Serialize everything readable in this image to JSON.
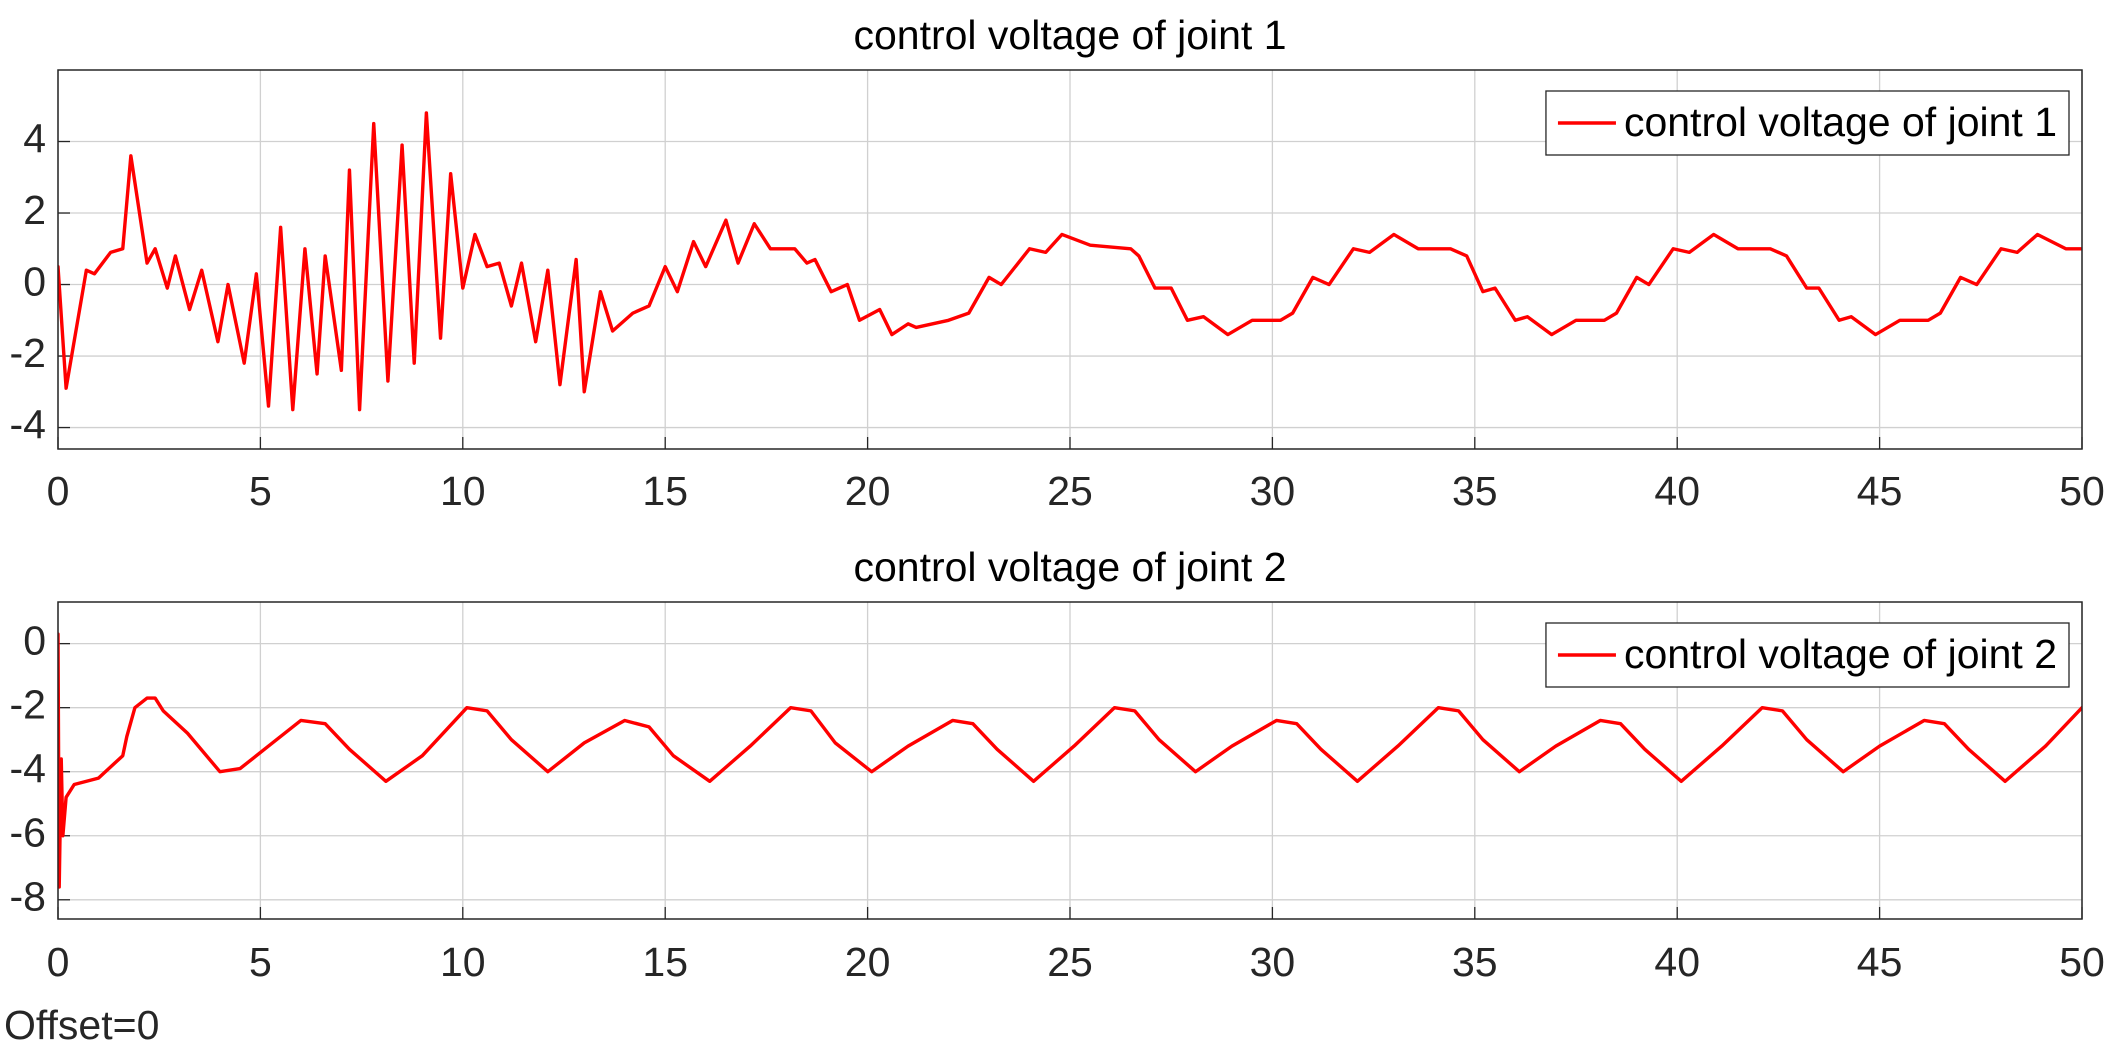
{
  "chart_data": [
    {
      "type": "line",
      "title": "control voltage of joint 1",
      "xlim": [
        0,
        50
      ],
      "xticks": [
        0,
        5,
        10,
        15,
        20,
        25,
        30,
        35,
        40,
        45,
        50
      ],
      "ylim": [
        -4.6,
        6
      ],
      "yticks": [
        -4,
        -2,
        0,
        2,
        4
      ],
      "grid": true,
      "legend": "upper right",
      "x": [
        0,
        0.2,
        0.7,
        0.9,
        1.3,
        1.6,
        1.8,
        2.2,
        2.4,
        2.7,
        2.9,
        3.25,
        3.55,
        3.95,
        4.2,
        4.6,
        4.9,
        5.2,
        5.5,
        5.8,
        6.1,
        6.4,
        6.6,
        7.0,
        7.2,
        7.45,
        7.8,
        8.15,
        8.5,
        8.8,
        9.1,
        9.45,
        9.7,
        10.0,
        10.3,
        10.6,
        10.9,
        11.2,
        11.45,
        11.8,
        12.1,
        12.4,
        12.8,
        13.0,
        13.4,
        13.7,
        14.2,
        14.6,
        15.0,
        15.3,
        15.7,
        16.0,
        16.5,
        16.8,
        17.2,
        17.6,
        18.2,
        18.5,
        18.7,
        19.1,
        19.5,
        19.8,
        20.3,
        20.6,
        21.0,
        21.2,
        22.0,
        22.5,
        23.0,
        23.3,
        24.0,
        24.4,
        24.8,
        25.5,
        26.5,
        26.7,
        27.1,
        27.5,
        27.9,
        28.3,
        28.9,
        29.5,
        30.2,
        30.5,
        31.0,
        31.4,
        32.0,
        32.4,
        33.0,
        33.6,
        34.4,
        34.8,
        35.2,
        35.5,
        36.0,
        36.3,
        36.9,
        37.5,
        38.2,
        38.5,
        39.0,
        39.3,
        39.9,
        40.3,
        40.9,
        41.5,
        42.3,
        42.7,
        43.2,
        43.5,
        44.0,
        44.3,
        44.9,
        45.5,
        46.2,
        46.5,
        47.0,
        47.4,
        48.0,
        48.4,
        48.9,
        49.6,
        50
      ],
      "series": [
        {
          "name": "control voltage of joint 1",
          "color": "#ff0000",
          "values": [
            0.5,
            -2.9,
            0.4,
            0.3,
            0.9,
            1.0,
            3.6,
            0.6,
            1.0,
            -0.1,
            0.8,
            -0.7,
            0.4,
            -1.6,
            0.0,
            -2.2,
            0.3,
            -3.4,
            1.6,
            -3.5,
            1.0,
            -2.5,
            0.8,
            -2.4,
            3.2,
            -3.5,
            4.5,
            -2.7,
            3.9,
            -2.2,
            4.8,
            -1.5,
            3.1,
            -0.1,
            1.4,
            0.5,
            0.6,
            -0.6,
            0.6,
            -1.6,
            0.4,
            -2.8,
            0.7,
            -3.0,
            -0.2,
            -1.3,
            -0.8,
            -0.6,
            0.5,
            -0.2,
            1.2,
            0.5,
            1.8,
            0.6,
            1.7,
            1.0,
            1.0,
            0.6,
            0.7,
            -0.2,
            0.0,
            -1.0,
            -0.7,
            -1.4,
            -1.1,
            -1.2,
            -1.0,
            -0.8,
            0.2,
            0.0,
            1.0,
            0.9,
            1.4,
            1.1,
            1.0,
            0.8,
            -0.1,
            -0.1,
            -1.0,
            -0.9,
            -1.4,
            -1.0,
            -1.0,
            -0.8,
            0.2,
            0.0,
            1.0,
            0.9,
            1.4,
            1.0,
            1.0,
            0.8,
            -0.2,
            -0.1,
            -1.0,
            -0.9,
            -1.4,
            -1.0,
            -1.0,
            -0.8,
            0.2,
            0.0,
            1.0,
            0.9,
            1.4,
            1.0,
            1.0,
            0.8,
            -0.1,
            -0.1,
            -1.0,
            -0.9,
            -1.4,
            -1.0,
            -1.0,
            -0.8,
            0.2,
            0.0,
            1.0,
            0.9,
            1.4,
            1.0,
            1.0
          ]
        }
      ]
    },
    {
      "type": "line",
      "title": "control voltage of joint 2",
      "xlim": [
        0,
        50
      ],
      "xticks": [
        0,
        5,
        10,
        15,
        20,
        25,
        30,
        35,
        40,
        45,
        50
      ],
      "ylim": [
        -8.6,
        1.3
      ],
      "yticks": [
        -8,
        -6,
        -4,
        -2,
        0
      ],
      "grid": true,
      "legend": "upper right",
      "x": [
        0,
        0.03,
        0.08,
        0.12,
        0.2,
        0.4,
        1.0,
        1.6,
        1.7,
        1.9,
        2.2,
        2.4,
        2.6,
        3.2,
        4.0,
        4.5,
        5.2,
        6.0,
        6.6,
        7.2,
        8.1,
        9.0,
        10.1,
        10.6,
        11.2,
        12.1,
        13.0,
        14.0,
        14.6,
        15.2,
        16.1,
        17.1,
        18.1,
        18.6,
        19.2,
        20.1,
        21.0,
        22.1,
        22.6,
        23.2,
        24.1,
        25.1,
        26.1,
        26.6,
        27.2,
        28.1,
        29.0,
        30.1,
        30.6,
        31.2,
        32.1,
        33.1,
        34.1,
        34.6,
        35.2,
        36.1,
        37.0,
        38.1,
        38.6,
        39.2,
        40.1,
        41.1,
        42.1,
        42.6,
        43.2,
        44.1,
        45.0,
        46.1,
        46.6,
        47.2,
        48.1,
        49.1,
        50
      ],
      "series": [
        {
          "name": "control voltage of joint 2",
          "color": "#ff0000",
          "values": [
            0.3,
            -7.6,
            -3.6,
            -6.0,
            -4.8,
            -4.4,
            -4.2,
            -3.5,
            -2.9,
            -2.0,
            -1.7,
            -1.7,
            -2.1,
            -2.8,
            -4.0,
            -3.9,
            -3.2,
            -2.4,
            -2.5,
            -3.3,
            -4.3,
            -3.5,
            -2.0,
            -2.1,
            -3.0,
            -4.0,
            -3.1,
            -2.4,
            -2.6,
            -3.5,
            -4.3,
            -3.2,
            -2.0,
            -2.1,
            -3.1,
            -4.0,
            -3.2,
            -2.4,
            -2.5,
            -3.3,
            -4.3,
            -3.2,
            -2.0,
            -2.1,
            -3.0,
            -4.0,
            -3.2,
            -2.4,
            -2.5,
            -3.3,
            -4.3,
            -3.2,
            -2.0,
            -2.1,
            -3.0,
            -4.0,
            -3.2,
            -2.4,
            -2.5,
            -3.3,
            -4.3,
            -3.2,
            -2.0,
            -2.1,
            -3.0,
            -4.0,
            -3.2,
            -2.4,
            -2.5,
            -3.3,
            -4.3,
            -3.2,
            -2.0
          ]
        }
      ]
    }
  ],
  "footer_text": "Offset=0"
}
